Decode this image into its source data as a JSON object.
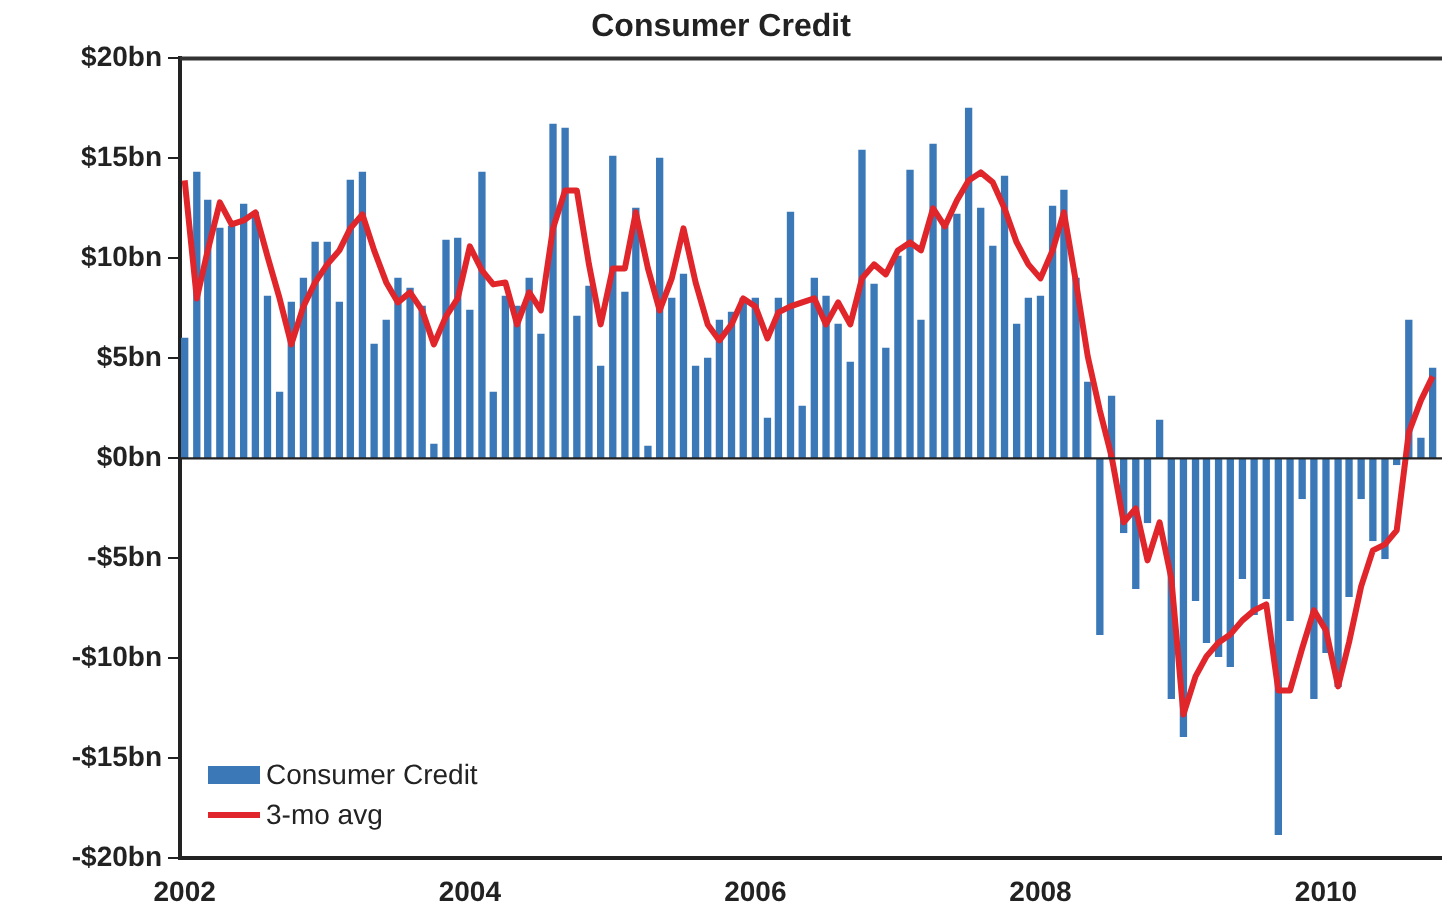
{
  "chart_data": {
    "type": "bar",
    "title": "Consumer Credit",
    "x": [
      "2002-01",
      "2002-02",
      "2002-03",
      "2002-04",
      "2002-05",
      "2002-06",
      "2002-07",
      "2002-08",
      "2002-09",
      "2002-10",
      "2002-11",
      "2002-12",
      "2003-01",
      "2003-02",
      "2003-03",
      "2003-04",
      "2003-05",
      "2003-06",
      "2003-07",
      "2003-08",
      "2003-09",
      "2003-10",
      "2003-11",
      "2003-12",
      "2004-01",
      "2004-02",
      "2004-03",
      "2004-04",
      "2004-05",
      "2004-06",
      "2004-07",
      "2004-08",
      "2004-09",
      "2004-10",
      "2004-11",
      "2004-12",
      "2005-01",
      "2005-02",
      "2005-03",
      "2005-04",
      "2005-05",
      "2005-06",
      "2005-07",
      "2005-08",
      "2005-09",
      "2005-10",
      "2005-11",
      "2005-12",
      "2006-01",
      "2006-02",
      "2006-03",
      "2006-04",
      "2006-05",
      "2006-06",
      "2006-07",
      "2006-08",
      "2006-09",
      "2006-10",
      "2006-11",
      "2006-12",
      "2007-01",
      "2007-02",
      "2007-03",
      "2007-04",
      "2007-05",
      "2007-06",
      "2007-07",
      "2007-08",
      "2007-09",
      "2007-10",
      "2007-11",
      "2007-12",
      "2008-01",
      "2008-02",
      "2008-03",
      "2008-04",
      "2008-05",
      "2008-06",
      "2008-07",
      "2008-08",
      "2008-09",
      "2008-10",
      "2008-11",
      "2008-12",
      "2009-01",
      "2009-02",
      "2009-03",
      "2009-04",
      "2009-05",
      "2009-06",
      "2009-07",
      "2009-08",
      "2009-09",
      "2009-10",
      "2009-11",
      "2009-12",
      "2010-01",
      "2010-02",
      "2010-03",
      "2010-04",
      "2010-05",
      "2010-06",
      "2010-07",
      "2010-08",
      "2010-09",
      "2010-10"
    ],
    "series": [
      {
        "name": "Consumer Credit",
        "color": "#3a78b8",
        "values": [
          6,
          14.3,
          12.9,
          11.5,
          11.6,
          12.7,
          12.3,
          8.1,
          3.3,
          7.8,
          9.0,
          10.8,
          10.8,
          7.8,
          13.9,
          14.3,
          5.7,
          6.9,
          9.0,
          8.5,
          7.6,
          0.7,
          10.9,
          11.0,
          7.4,
          14.3,
          3.3,
          8.1,
          7.6,
          9.0,
          6.2,
          16.7,
          16.5,
          7.1,
          8.6,
          4.6,
          15.1,
          8.3,
          12.5,
          0.6,
          15.0,
          8.0,
          9.2,
          4.6,
          5.0,
          6.9,
          7.3,
          8.0,
          8.0,
          2.0,
          8.0,
          12.3,
          2.6,
          9.0,
          8.1,
          6.7,
          4.8,
          15.4,
          8.7,
          5.5,
          10.1,
          14.4,
          6.9,
          15.7,
          11.6,
          12.2,
          17.5,
          12.5,
          10.6,
          14.1,
          6.7,
          8.0,
          8.1,
          12.6,
          13.4,
          9.0,
          3.8,
          -8.8,
          3.1,
          -3.7,
          -6.5,
          -3.2,
          1.9,
          -12.0,
          -13.9,
          -7.1,
          -9.2,
          -9.9,
          -10.4,
          -6.0,
          -7.8,
          -7.0,
          -18.8,
          -8.1,
          -2.0,
          -12.0,
          -9.7,
          -11.4,
          -6.9,
          -2.0,
          -4.1,
          -5.0,
          -0.3,
          6.9,
          1.0,
          4.5
        ]
      },
      {
        "name": "3-mo avg",
        "type": "line",
        "color": "#e0262b",
        "values": [
          13.9,
          8.0,
          10.4,
          12.8,
          11.7,
          11.9,
          12.3,
          10.1,
          8.0,
          5.7,
          7.6,
          8.8,
          9.7,
          10.4,
          11.5,
          12.2,
          10.4,
          8.8,
          7.8,
          8.3,
          7.4,
          5.7,
          7.1,
          8.0,
          10.6,
          9.4,
          8.7,
          8.8,
          6.7,
          8.3,
          7.4,
          11.5,
          13.4,
          13.4,
          9.7,
          6.7,
          9.5,
          9.5,
          12.3,
          9.5,
          7.4,
          9.0,
          11.5,
          8.8,
          6.7,
          5.9,
          6.7,
          8.0,
          7.6,
          6.0,
          7.3,
          7.6,
          7.8,
          8.0,
          6.7,
          7.8,
          6.7,
          9.0,
          9.7,
          9.2,
          10.4,
          10.8,
          10.4,
          12.5,
          11.6,
          12.9,
          13.9,
          14.3,
          13.8,
          12.5,
          10.8,
          9.7,
          9.0,
          10.4,
          12.3,
          8.8,
          5.1,
          2.4,
          0.1,
          -3.2,
          -2.5,
          -5.1,
          -3.2,
          -6.0,
          -12.8,
          -10.9,
          -9.9,
          -9.2,
          -8.8,
          -8.1,
          -7.6,
          -7.3,
          -11.6,
          -11.6,
          -9.5,
          -7.6,
          -8.6,
          -11.4,
          -9.2,
          -6.4,
          -4.6,
          -4.3,
          -3.6,
          1.3,
          2.9,
          4.1
        ]
      }
    ],
    "xlim": [
      "2001-12-20",
      "2010-10-25"
    ],
    "xticks": [
      {
        "value": "2002",
        "label": "2002"
      },
      {
        "value": "2004",
        "label": "2004"
      },
      {
        "value": "2006",
        "label": "2006"
      },
      {
        "value": "2008",
        "label": "2008"
      },
      {
        "value": "2010",
        "label": "2010"
      }
    ],
    "ylim": [
      -20,
      20
    ],
    "yticks": [
      {
        "value": -20,
        "label": "-$20bn"
      },
      {
        "value": -15,
        "label": "-$15bn"
      },
      {
        "value": -10,
        "label": "-$10bn"
      },
      {
        "value": -5,
        "label": "-$5bn"
      },
      {
        "value": 0,
        "label": "$0bn"
      },
      {
        "value": 5,
        "label": "$5bn"
      },
      {
        "value": 10,
        "label": "$10bn"
      },
      {
        "value": 15,
        "label": "$15bn"
      },
      {
        "value": 20,
        "label": "$20bn"
      }
    ],
    "legend": "bottom left",
    "marker": "none",
    "line_style": "solid"
  }
}
